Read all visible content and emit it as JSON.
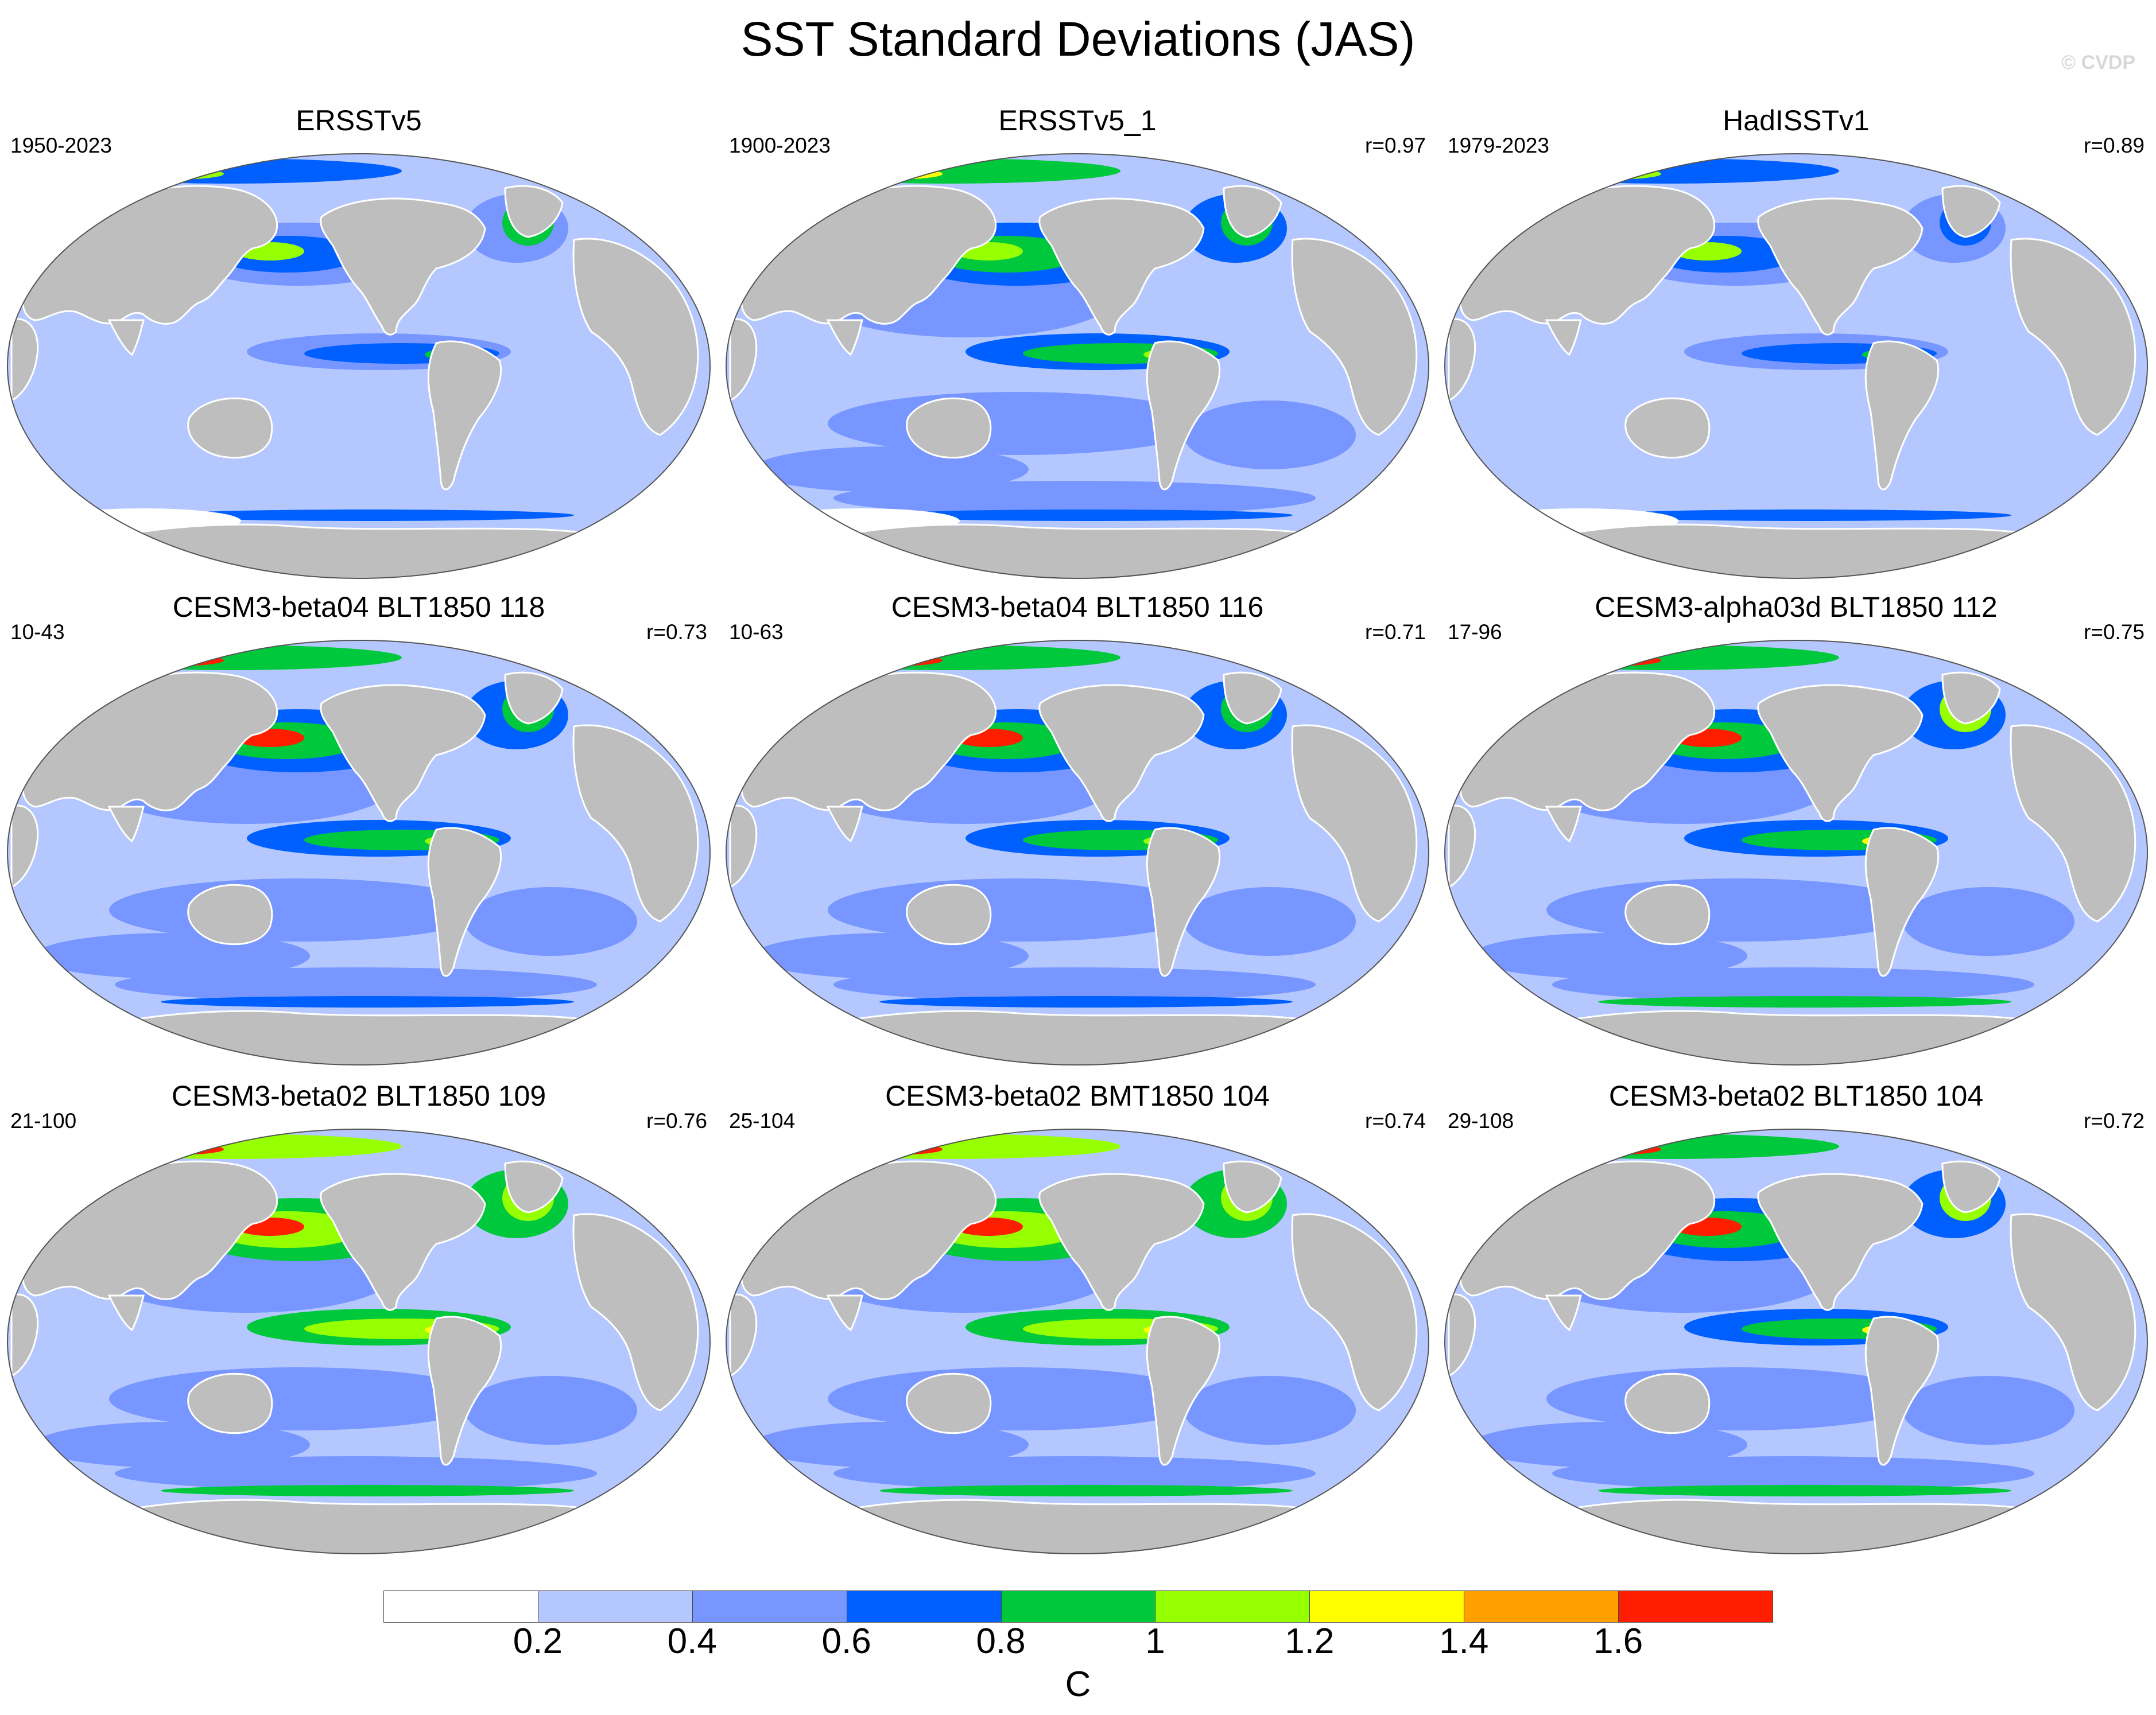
{
  "title": "SST Standard Deviations (JAS)",
  "copyright": "© CVDP",
  "panels": [
    {
      "title": "ERSSTv5",
      "period": "1950-2023",
      "corr": "",
      "scale": 0.85,
      "hot": 0
    },
    {
      "title": "ERSSTv5_1",
      "period": "1900-2023",
      "corr": "r=0.97",
      "scale": 0.95,
      "hot": 0
    },
    {
      "title": "HadISSTv1",
      "period": "1979-2023",
      "corr": "r=0.89",
      "scale": 0.8,
      "hot": 0.3
    },
    {
      "title": "CESM3-beta04 BLT1850 118",
      "period": "10-43",
      "corr": "r=0.73",
      "scale": 1.05,
      "hot": 1
    },
    {
      "title": "CESM3-beta04 BLT1850 116",
      "period": "10-63",
      "corr": "r=0.71",
      "scale": 1.05,
      "hot": 1
    },
    {
      "title": "CESM3-alpha03d BLT1850 112",
      "period": "17-96",
      "corr": "r=0.75",
      "scale": 1.1,
      "hot": 1
    },
    {
      "title": "CESM3-beta02 BLT1850 109",
      "period": "21-100",
      "corr": "r=0.76",
      "scale": 1.15,
      "hot": 1
    },
    {
      "title": "CESM3-beta02 BMT1850 104",
      "period": "25-104",
      "corr": "r=0.74",
      "scale": 1.15,
      "hot": 1
    },
    {
      "title": "CESM3-beta02 BLT1850 104",
      "period": "29-108",
      "corr": "r=0.72",
      "scale": 1.1,
      "hot": 1
    }
  ],
  "colorbar": {
    "unit": "C",
    "labels": [
      "0.2",
      "0.4",
      "0.6",
      "0.8",
      "1",
      "1.2",
      "1.4",
      "1.6"
    ],
    "colors": [
      "#ffffff",
      "#b4c8ff",
      "#7896ff",
      "#0060ff",
      "#00c83c",
      "#96ff00",
      "#ffff00",
      "#ffa000",
      "#ff1e00"
    ]
  },
  "land_color": "#bebebe"
}
